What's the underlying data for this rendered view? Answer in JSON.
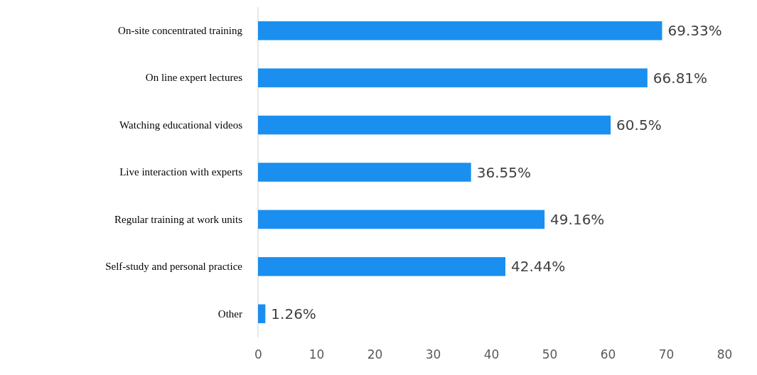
{
  "chart_data": {
    "type": "bar",
    "orientation": "horizontal",
    "categories": [
      "On-site concentrated training",
      "On line expert lectures",
      "Watching educational videos",
      "Live interaction with experts",
      "Regular training at work units",
      "Self-study and personal practice",
      "Other"
    ],
    "values": [
      69.33,
      66.81,
      60.5,
      36.55,
      49.16,
      42.44,
      1.26
    ],
    "value_labels": [
      "69.33%",
      "66.81%",
      "60.5%",
      "36.55%",
      "49.16%",
      "42.44%",
      "1.26%"
    ],
    "color": "#1a8ff0",
    "xlim": [
      0,
      80
    ],
    "xticks": [
      0,
      10,
      20,
      30,
      40,
      50,
      60,
      70,
      80
    ]
  }
}
